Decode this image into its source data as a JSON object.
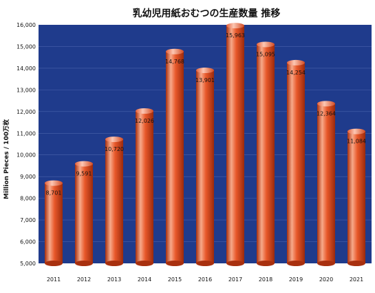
{
  "chart_data": {
    "type": "bar",
    "title": "乳幼児用紙おむつの生産数量 推移",
    "xlabel": "",
    "ylabel": "Million Pieces / 100万枚",
    "ylim": [
      5000,
      16000
    ],
    "yticks": [
      5000,
      6000,
      7000,
      8000,
      9000,
      10000,
      11000,
      12000,
      13000,
      14000,
      15000,
      16000
    ],
    "ytick_labels": [
      "5,000",
      "6,000",
      "7,000",
      "8,000",
      "9,000",
      "10,000",
      "11,000",
      "12,000",
      "13,000",
      "14,000",
      "15,000",
      "16,000"
    ],
    "categories": [
      "2011",
      "2012",
      "2013",
      "2014",
      "2015",
      "2016",
      "2017",
      "2018",
      "2019",
      "2020",
      "2021"
    ],
    "values": [
      8701,
      9591,
      10720,
      12026,
      14768,
      13901,
      15963,
      15095,
      14254,
      12364,
      11084
    ],
    "value_labels": [
      "8,701",
      "9,591",
      "10,720",
      "12,026",
      "14,768",
      "13,901",
      "15,963",
      "15,095",
      "14,254",
      "12,364",
      "11,084"
    ],
    "grid": true,
    "legend": "none",
    "colors": {
      "plot_background": "#1f3b8c",
      "grid": "#4a63ad",
      "bar_light": "#f8b49a",
      "bar_mid": "#e85a2c",
      "bar_dark": "#9e2a0e"
    }
  }
}
